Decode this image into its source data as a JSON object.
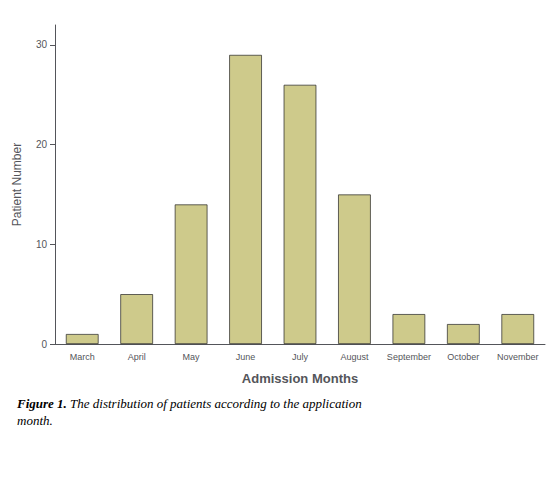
{
  "chart_data": {
    "type": "bar",
    "categories": [
      "March",
      "April",
      "May",
      "June",
      "July",
      "August",
      "September",
      "October",
      "November"
    ],
    "values": [
      1,
      5,
      14,
      29,
      26,
      15,
      3,
      2,
      3
    ],
    "color": "#ceca8b",
    "xlabel": "Admission Months",
    "ylabel": "Patient Number",
    "ylim": [
      0,
      32
    ],
    "yticks": [
      0,
      10,
      20,
      30
    ],
    "grid": false,
    "annotations": [
      "Figure 1.",
      "The distribution of patients according to the application\nmonth."
    ]
  }
}
